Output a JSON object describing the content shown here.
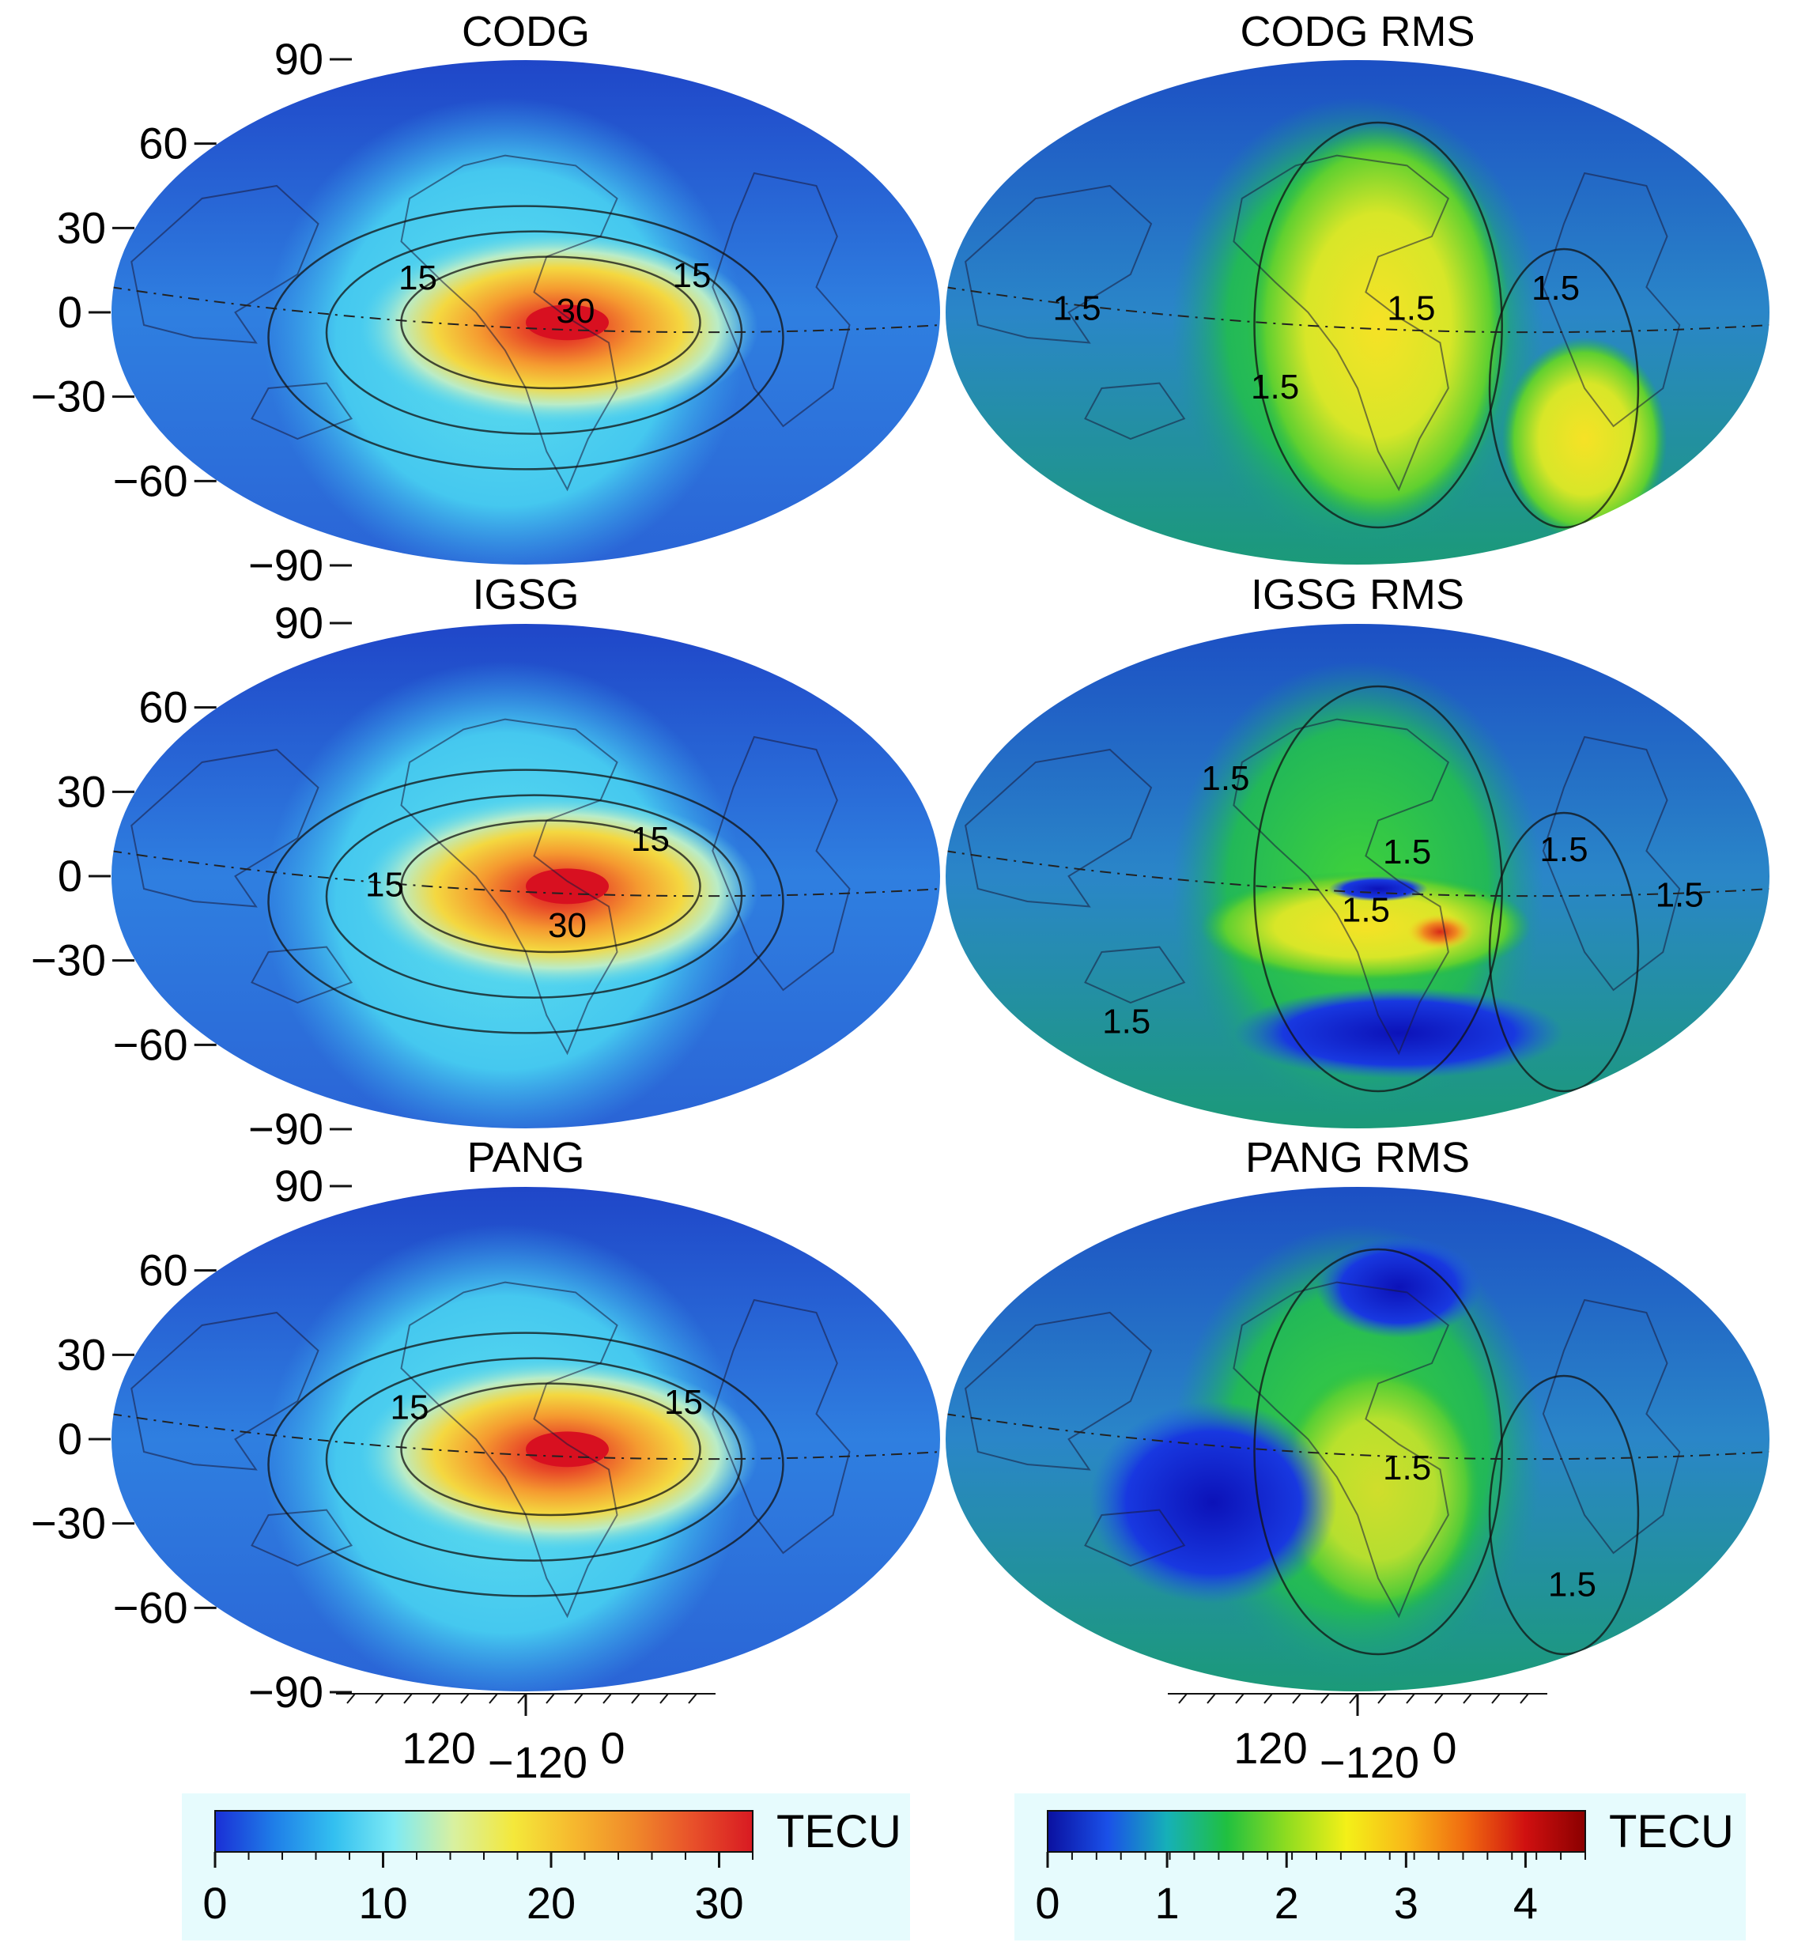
{
  "panels": [
    {
      "id": "codg",
      "title": "CODG",
      "field": "tec",
      "contour_labels": [
        "15",
        "30",
        "15"
      ]
    },
    {
      "id": "codg-rms",
      "title": "CODG RMS",
      "field": "rms",
      "contour_labels": [
        "1.5",
        "1.5",
        "1.5",
        "1.5"
      ]
    },
    {
      "id": "igsg",
      "title": "IGSG",
      "field": "tec",
      "contour_labels": [
        "15",
        "15",
        "30"
      ]
    },
    {
      "id": "igsg-rms",
      "title": "IGSG RMS",
      "field": "rms",
      "contour_labels": [
        "1.5",
        "1.5",
        "1.5",
        "1.5",
        "1.5",
        "1.5"
      ]
    },
    {
      "id": "pang",
      "title": "PANG",
      "field": "tec",
      "contour_labels": [
        "15",
        "15"
      ]
    },
    {
      "id": "pang-rms",
      "title": "PANG RMS",
      "field": "rms",
      "contour_labels": [
        "1.5",
        "1.5"
      ]
    }
  ],
  "lat_ticks": [
    "90",
    "60",
    "30",
    "0",
    "−30",
    "−60",
    "−90"
  ],
  "lon_ticks": {
    "left": "120",
    "mid": "−120",
    "right": "0"
  },
  "colorbars": {
    "tec": {
      "unit": "TECU",
      "ticks": [
        "0",
        "10",
        "20",
        "30"
      ],
      "min": 0,
      "max": 32,
      "stops": [
        "#1a2fd6",
        "#1f7fe8",
        "#33c0f0",
        "#7eeaf4",
        "#d8f0a0",
        "#f4e83a",
        "#f6b82e",
        "#f08a2a",
        "#e8502a",
        "#d81a22"
      ]
    },
    "rms": {
      "unit": "TECU",
      "ticks": [
        "0",
        "1",
        "2",
        "3",
        "4"
      ],
      "min": 0,
      "max": 4.5,
      "stops": [
        "#0a10a0",
        "#1a50e8",
        "#16b0b8",
        "#20c040",
        "#8edc20",
        "#f4f018",
        "#f8b818",
        "#f06a10",
        "#d01010",
        "#8a0000"
      ]
    }
  },
  "map_colors": {
    "tec_background": "#2b6fd6",
    "rms_background": "#1f5ac8"
  }
}
